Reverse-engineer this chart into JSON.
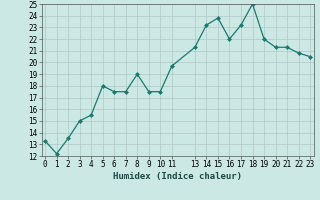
{
  "title": "",
  "xlabel": "Humidex (Indice chaleur)",
  "x_values": [
    0,
    1,
    2,
    3,
    4,
    5,
    6,
    7,
    8,
    9,
    10,
    11,
    13,
    14,
    15,
    16,
    17,
    18,
    19,
    20,
    21,
    22,
    23
  ],
  "y_values": [
    13.3,
    12.2,
    13.5,
    15.0,
    15.5,
    18.0,
    17.5,
    17.5,
    19.0,
    17.5,
    17.5,
    19.7,
    21.3,
    23.2,
    23.8,
    22.0,
    23.2,
    25.0,
    22.0,
    21.3,
    21.3,
    20.8,
    20.5
  ],
  "ylim": [
    12,
    25
  ],
  "xlim": [
    -0.3,
    23.3
  ],
  "yticks": [
    12,
    13,
    14,
    15,
    16,
    17,
    18,
    19,
    20,
    21,
    22,
    23,
    24,
    25
  ],
  "xticks": [
    0,
    1,
    2,
    3,
    4,
    5,
    6,
    7,
    8,
    9,
    10,
    11,
    13,
    14,
    15,
    16,
    17,
    18,
    19,
    20,
    21,
    22,
    23
  ],
  "line_color": "#1a7a6e",
  "marker_color": "#1a7a6e",
  "bg_color": "#cce8e4",
  "grid_color": "#b0c8c4",
  "title_fontsize": 7,
  "label_fontsize": 6.5,
  "tick_fontsize": 5.5
}
